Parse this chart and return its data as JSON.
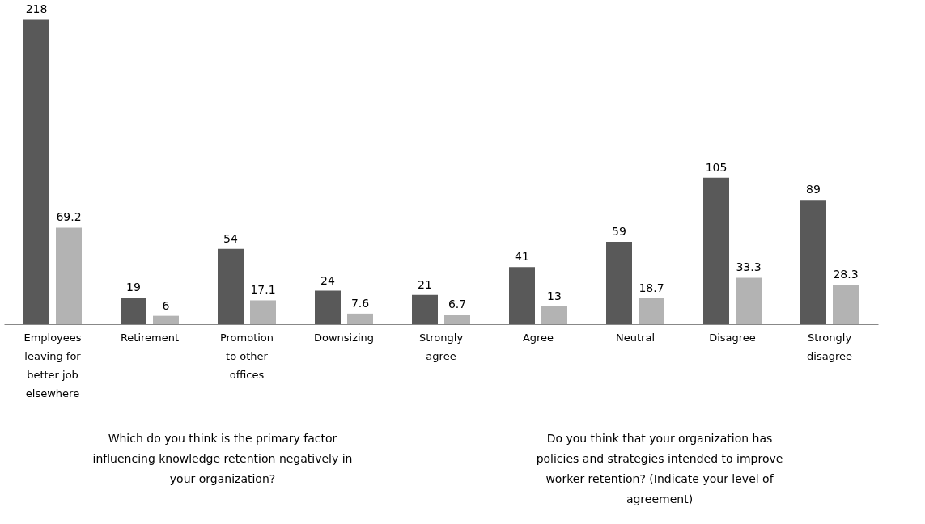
{
  "chart_data": {
    "type": "bar",
    "categories": [
      "Employees leaving for better job elsewhere",
      "Retirement",
      "Promotion to other offices",
      "Downsizing",
      "Strongly agree",
      "Agree",
      "Neutral",
      "Disagree",
      "Strongly disagree"
    ],
    "series": [
      {
        "color": "#595959",
        "values": [
          218,
          19,
          54,
          24,
          21,
          41,
          59,
          105,
          89
        ]
      },
      {
        "color": "#b3b3b3",
        "values": [
          69.2,
          6,
          17.1,
          7.6,
          6.7,
          13,
          18.7,
          33.3,
          28.3
        ]
      }
    ],
    "data_labels": true,
    "grid": false,
    "legend": false,
    "annotations": [
      "Which do you think is the primary factor influencing knowledge retention negatively in your organization?",
      "Do you think that your organization  has policies and strategies intended to improve worker retention? (Indicate your level of agreement)"
    ]
  }
}
